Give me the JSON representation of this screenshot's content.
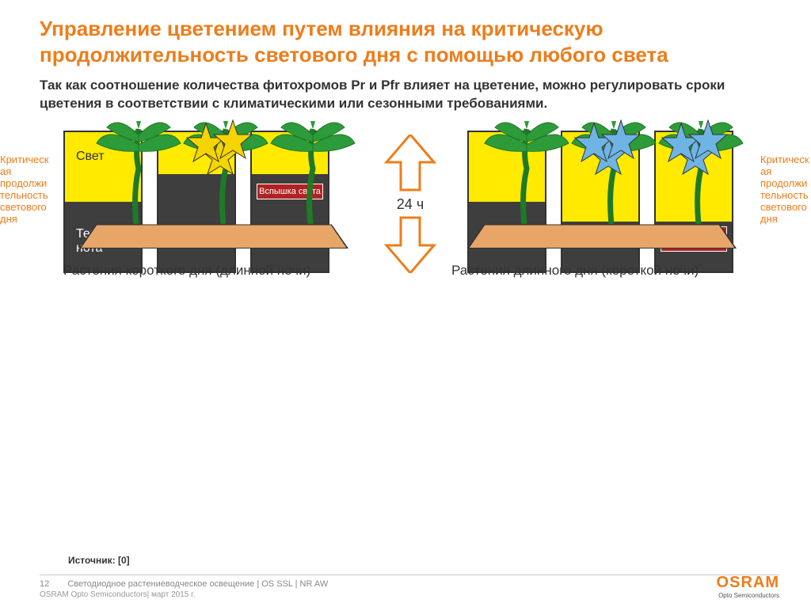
{
  "title": "Управление цветением путем влияния на критическую продолжительность светового дня с помощью любого света",
  "subtitle": "Так как соотношение количества фитохромов Pr и Pfr влияет на цветение, можно регулировать сроки цветения в соответствии с климатическими или сезонными требованиями.",
  "side_label_left": "Критическая продолжительность светового дня",
  "side_label_right": "Критическая продолжительность светового дня",
  "arrow_label": "24 ч",
  "bar_labels": {
    "light": "Свет",
    "dark": "Тем-\nнота"
  },
  "bars_left": [
    {
      "light_pct": 50,
      "dark_pct": 50,
      "has_labels": true
    },
    {
      "light_pct": 30,
      "dark_pct": 70
    },
    {
      "light_pct": 30,
      "dark_pct": 70,
      "badge": "Вспышка света"
    }
  ],
  "bars_right": [
    {
      "light_pct": 50,
      "dark_pct": 50
    },
    {
      "light_pct": 64,
      "dark_pct": 36
    },
    {
      "light_pct": 64,
      "dark_pct": 36,
      "badge": "Световой период"
    }
  ],
  "plants": {
    "left": {
      "caption": "Растения короткого дня (длинной ночи)",
      "flowers": [
        {
          "plant_idx": 0,
          "count": 0
        },
        {
          "plant_idx": 1,
          "count": 3,
          "color": "#F5D400"
        },
        {
          "plant_idx": 2,
          "count": 0
        }
      ]
    },
    "right": {
      "caption": "Растения длинного дня (короткой ночи)",
      "flowers": [
        {
          "plant_idx": 0,
          "count": 0
        },
        {
          "plant_idx": 1,
          "count": 3,
          "color": "#6EB5E5"
        },
        {
          "plant_idx": 2,
          "count": 3,
          "color": "#6EB5E5"
        }
      ]
    }
  },
  "colors": {
    "accent": "#ED7D1A",
    "bar_light": "#FFEA00",
    "bar_dark": "#3E3E3E",
    "bar_border": "#333333",
    "badge_bg": "#B22222",
    "ground": "#E8A568",
    "leaf": "#2E9B3A",
    "stem": "#1E7A28",
    "flower_yellow": "#F5D400",
    "flower_blue": "#6EB5E5"
  },
  "source_label": "Источник: [0]",
  "footer": {
    "page": "12",
    "line1": "Светодиодное растениеводческое освещение | OS SSL | NR AW",
    "line2": "OSRAM  Opto Semiconductors| март 2015 г.",
    "logo_main": "OSRAM",
    "logo_sub": "Opto Semiconductors"
  }
}
